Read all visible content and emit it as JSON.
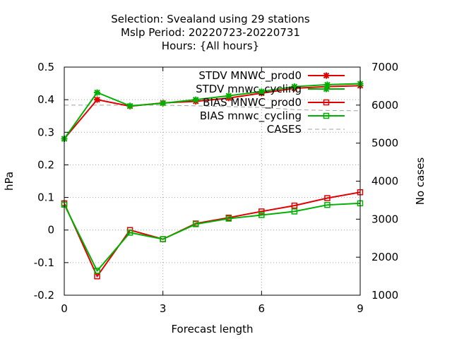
{
  "chart_data": {
    "type": "line",
    "title_lines": [
      "Selection: Svealand using    29 stations",
      "Mslp   Period: 20220723-20220731",
      "Hours: {All hours}"
    ],
    "xlabel": "Forecast length",
    "ylabel": "hPa",
    "y2label": "No cases",
    "xlim": [
      0,
      9
    ],
    "ylim": [
      -0.2,
      0.5
    ],
    "y2lim": [
      1000,
      7000
    ],
    "xticks": [
      0,
      3,
      6,
      9
    ],
    "yticks": [
      -0.2,
      -0.1,
      0,
      0.1,
      0.2,
      0.3,
      0.4,
      0.5
    ],
    "ytick_labels": [
      "-0.2",
      "-0.1",
      "0",
      "0.1",
      "0.2",
      "0.3",
      "0.4",
      "0.5"
    ],
    "y2ticks": [
      1000,
      2000,
      3000,
      4000,
      5000,
      6000,
      7000
    ],
    "grid": true,
    "legend_position": "top-right",
    "x": [
      0,
      1,
      2,
      3,
      4,
      5,
      6,
      7,
      8,
      9
    ],
    "series": [
      {
        "name": "STDV MNWC_prod0",
        "color": "#e00000",
        "marker": "x",
        "axis": "y1",
        "values": [
          0.28,
          0.4,
          0.38,
          0.39,
          0.395,
          0.405,
          0.42,
          0.435,
          0.44,
          0.443
        ]
      },
      {
        "name": "STDV mnwc_cycling",
        "color": "#00b000",
        "marker": "x",
        "axis": "y1",
        "values": [
          0.28,
          0.422,
          0.381,
          0.389,
          0.4,
          0.412,
          0.425,
          0.44,
          0.446,
          0.449
        ]
      },
      {
        "name": "BIAS MNWC_prod0",
        "color": "#e00000",
        "marker": "square",
        "axis": "y1",
        "values": [
          0.082,
          -0.142,
          0.0,
          -0.028,
          0.02,
          0.038,
          0.057,
          0.075,
          0.098,
          0.116
        ]
      },
      {
        "name": "BIAS mnwc_cycling",
        "color": "#00b000",
        "marker": "square",
        "axis": "y1",
        "values": [
          0.078,
          -0.125,
          -0.008,
          -0.028,
          0.018,
          0.035,
          0.046,
          0.057,
          0.077,
          0.082
        ]
      },
      {
        "name": "CASES",
        "color": "#a0a0a0",
        "marker": "none",
        "dash": true,
        "axis": "y2",
        "values": [
          6000,
          6000,
          6000,
          6000,
          5980,
          5960,
          5940,
          5880,
          5860,
          5850
        ]
      }
    ]
  }
}
